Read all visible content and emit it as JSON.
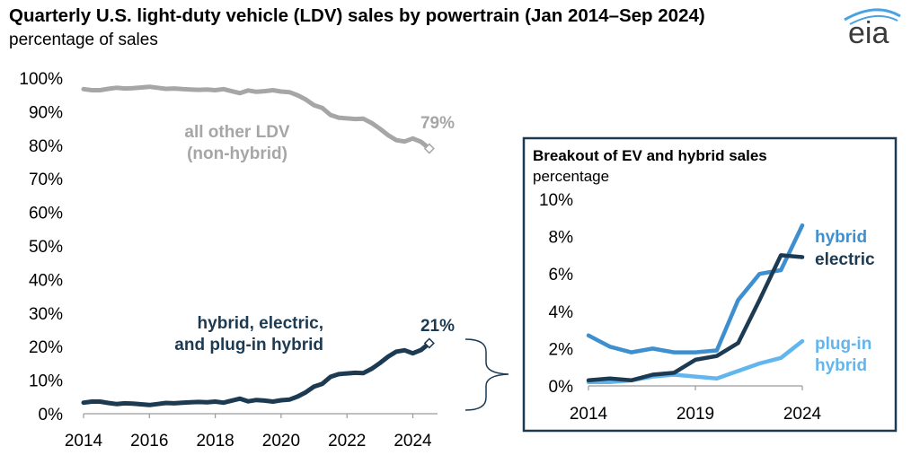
{
  "header": {
    "title": "Quarterly U.S. light-duty vehicle (LDV) sales by powertrain (Jan 2014–Sep 2024)",
    "subtitle": "percentage of sales",
    "logo_text": "eia"
  },
  "colors": {
    "other": "#a6a6a6",
    "ev_total": "#1c3a52",
    "hybrid": "#3d8fd0",
    "electric": "#1c3a52",
    "plugin": "#62b6ef",
    "axis": "#9a9a9a",
    "inset_border": "#1c3a52"
  },
  "chart_data": [
    {
      "type": "line",
      "title": "Quarterly U.S. light-duty vehicle (LDV) sales by powertrain (Jan 2014–Sep 2024)",
      "ylabel": "percentage of sales",
      "xlim": [
        2014,
        2024.75
      ],
      "ylim": [
        0,
        100
      ],
      "x_ticks": [
        "2014",
        "2016",
        "2018",
        "2020",
        "2022",
        "2024"
      ],
      "y_ticks": [
        "0%",
        "10%",
        "20%",
        "30%",
        "40%",
        "50%",
        "60%",
        "70%",
        "80%",
        "90%",
        "100%"
      ],
      "series": [
        {
          "name": "all other LDV",
          "label": [
            "all other LDV",
            "(non-hybrid)"
          ],
          "end_label": "79%",
          "x": [
            2014,
            2014.25,
            2014.5,
            2014.75,
            2015,
            2015.25,
            2015.5,
            2015.75,
            2016,
            2016.25,
            2016.5,
            2016.75,
            2017,
            2017.25,
            2017.5,
            2017.75,
            2018,
            2018.25,
            2018.5,
            2018.75,
            2019,
            2019.25,
            2019.5,
            2019.75,
            2020,
            2020.25,
            2020.5,
            2020.75,
            2021,
            2021.25,
            2021.5,
            2021.75,
            2022,
            2022.25,
            2022.5,
            2022.75,
            2023,
            2023.25,
            2023.5,
            2023.75,
            2024,
            2024.25,
            2024.5
          ],
          "values": [
            96.7,
            96.4,
            96.4,
            96.8,
            97.1,
            96.9,
            97.0,
            97.2,
            97.4,
            97.1,
            96.8,
            96.9,
            96.7,
            96.6,
            96.5,
            96.6,
            96.4,
            96.7,
            96.1,
            95.5,
            96.3,
            95.9,
            96.1,
            96.4,
            96.0,
            95.8,
            94.9,
            93.6,
            91.9,
            91.1,
            89.0,
            88.2,
            88.0,
            87.8,
            87.9,
            86.6,
            84.9,
            83.0,
            81.5,
            81.1,
            82.0,
            81.0,
            79.0
          ]
        },
        {
          "name": "hybrid, electric, and plug-in hybrid",
          "label": [
            "hybrid, electric,",
            "and plug-in hybrid"
          ],
          "end_label": "21%",
          "x": [
            2014,
            2014.25,
            2014.5,
            2014.75,
            2015,
            2015.25,
            2015.5,
            2015.75,
            2016,
            2016.25,
            2016.5,
            2016.75,
            2017,
            2017.25,
            2017.5,
            2017.75,
            2018,
            2018.25,
            2018.5,
            2018.75,
            2019,
            2019.25,
            2019.5,
            2019.75,
            2020,
            2020.25,
            2020.5,
            2020.75,
            2021,
            2021.25,
            2021.5,
            2021.75,
            2022,
            2022.25,
            2022.5,
            2022.75,
            2023,
            2023.25,
            2023.5,
            2023.75,
            2024,
            2024.25,
            2024.5
          ],
          "values": [
            3.3,
            3.6,
            3.6,
            3.2,
            2.9,
            3.1,
            3.0,
            2.8,
            2.6,
            2.9,
            3.2,
            3.1,
            3.3,
            3.4,
            3.5,
            3.4,
            3.6,
            3.3,
            3.9,
            4.5,
            3.7,
            4.1,
            3.9,
            3.6,
            4.0,
            4.2,
            5.1,
            6.4,
            8.1,
            8.9,
            11.0,
            11.8,
            12.0,
            12.2,
            12.1,
            13.4,
            15.1,
            17.0,
            18.5,
            18.9,
            18.0,
            19.0,
            21.0
          ]
        }
      ]
    },
    {
      "type": "line",
      "title": "Breakout of EV and hybrid sales",
      "ylabel": "percentage",
      "xlim": [
        2014,
        2024
      ],
      "ylim": [
        0,
        10
      ],
      "x_ticks": [
        "2014",
        "2019",
        "2024"
      ],
      "y_ticks": [
        "0%",
        "2%",
        "4%",
        "6%",
        "8%",
        "10%"
      ],
      "series": [
        {
          "name": "hybrid",
          "label": [
            "hybrid"
          ],
          "x": [
            2014,
            2015,
            2016,
            2017,
            2018,
            2019,
            2020,
            2021,
            2022,
            2023,
            2024
          ],
          "values": [
            2.7,
            2.1,
            1.8,
            2.0,
            1.8,
            1.8,
            1.9,
            4.6,
            6.0,
            6.2,
            8.6
          ]
        },
        {
          "name": "electric",
          "label": [
            "electric"
          ],
          "x": [
            2014,
            2015,
            2016,
            2017,
            2018,
            2019,
            2020,
            2021,
            2022,
            2023,
            2024
          ],
          "values": [
            0.3,
            0.4,
            0.3,
            0.6,
            0.7,
            1.4,
            1.6,
            2.3,
            4.6,
            7.0,
            6.9
          ]
        },
        {
          "name": "plug-in hybrid",
          "label": [
            "plug-in",
            "hybrid"
          ],
          "x": [
            2014,
            2015,
            2016,
            2017,
            2018,
            2019,
            2020,
            2021,
            2022,
            2023,
            2024
          ],
          "values": [
            0.2,
            0.2,
            0.3,
            0.5,
            0.6,
            0.5,
            0.4,
            0.8,
            1.2,
            1.5,
            2.4
          ]
        }
      ]
    }
  ]
}
